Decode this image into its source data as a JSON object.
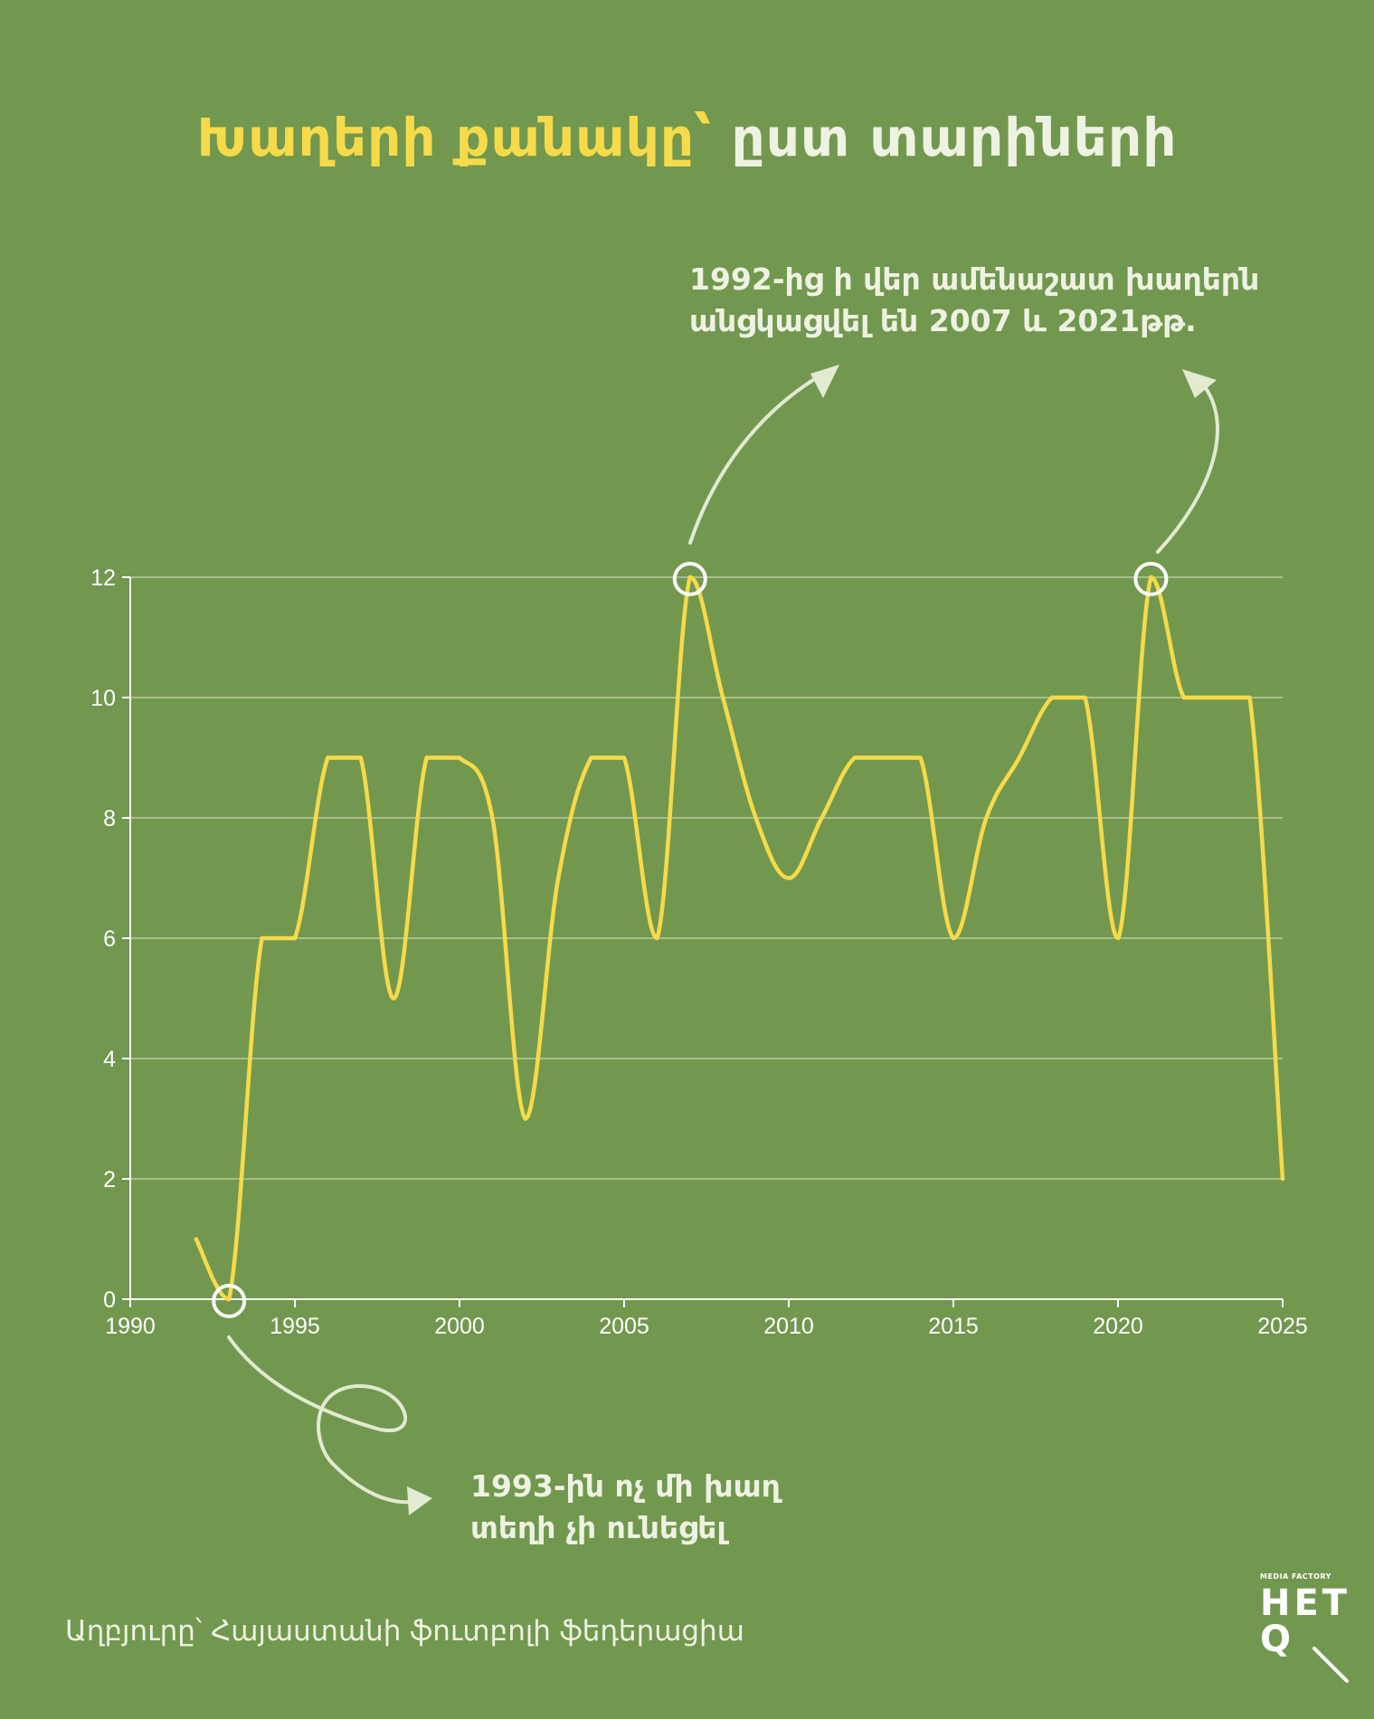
{
  "title": {
    "highlight": "Խաղերի քանակը՝",
    "rest": "ըստ տարիների"
  },
  "annotations": {
    "top_line1": "1992-ից ի վեր ամենաշատ խաղերն",
    "top_line2": "անցկացվել են 2007 և 2021թթ.",
    "bottom_line1": "1993-ին ոչ մի խաղ",
    "bottom_line2": "տեղի չի ունեցել"
  },
  "source": "Աղբյուրը՝ Հայաստանի ֆուտբոլի ֆեդերացիա",
  "logo": {
    "small": "MEDIA FACTORY",
    "line1": "HET",
    "line2": "Q"
  },
  "colors": {
    "background": "#72984f",
    "line": "#f6da4a",
    "title_highlight": "#f6da4a",
    "text": "#eef2e2",
    "arrow": "#e2ead2",
    "grid": "#b9cc9e"
  },
  "chart_data": {
    "type": "line",
    "title": "Խաղերի քանակը՝ ըստ տարիների",
    "xlabel": "",
    "ylabel": "",
    "xlim": [
      1990,
      2025
    ],
    "ylim": [
      0,
      12
    ],
    "x_ticks": [
      1990,
      1995,
      2000,
      2005,
      2010,
      2015,
      2020,
      2025
    ],
    "y_ticks": [
      0,
      2,
      4,
      6,
      8,
      10,
      12
    ],
    "grid": true,
    "series": [
      {
        "x": [
          1992,
          1993,
          1994,
          1995,
          1996,
          1997,
          1998,
          1999,
          2000,
          2001,
          2002,
          2003,
          2004,
          2005,
          2006,
          2007,
          2008,
          2009,
          2010,
          2011,
          2012,
          2013,
          2014,
          2015,
          2016,
          2017,
          2018,
          2019,
          2020,
          2021,
          2022,
          2023,
          2024,
          2025
        ],
        "values": [
          1,
          0,
          6,
          6,
          9,
          9,
          5,
          9,
          9,
          8,
          3,
          7,
          9,
          9,
          6,
          12,
          10,
          8,
          7,
          8,
          9,
          9,
          9,
          6,
          8,
          9,
          10,
          10,
          6,
          12,
          10,
          10,
          10,
          2
        ]
      }
    ],
    "highlighted_points": [
      {
        "x": 1993,
        "y": 0
      },
      {
        "x": 2007,
        "y": 12
      },
      {
        "x": 2021,
        "y": 12
      }
    ]
  }
}
